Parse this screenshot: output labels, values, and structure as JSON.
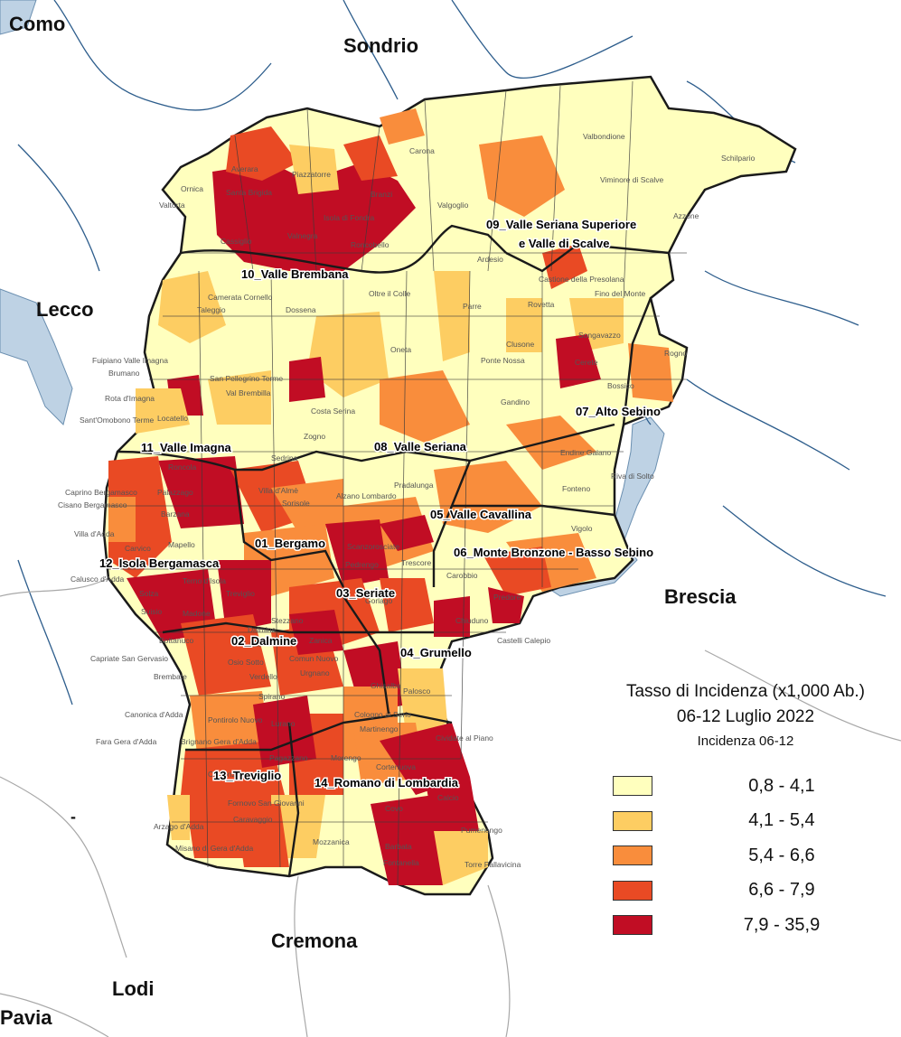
{
  "neighbors": [
    "Como",
    "Sondrio",
    "Lecco",
    "Brescia",
    "Cremona",
    "Lodi",
    "Pavia"
  ],
  "unnamed_region_mark": "-",
  "districts": [
    "01_Bergamo",
    "02_Dalmine",
    "03_Seriate",
    "04_Grumello",
    "05_Valle Cavallina",
    "06_Monte Bronzone - Basso Sebino",
    "07_Alto Sebino",
    "08_Valle Seriana",
    "09_Valle Seriana Superiore",
    "e Valle di Scalve",
    "10_Valle Brembana",
    "11_Valle Imagna",
    "12_Isola Bergamasca",
    "13_Treviglio",
    "14_Romano di Lombardia"
  ],
  "municipalities": [
    "Carona",
    "Valbondione",
    "Schilpario",
    "Piazzatorre",
    "Branzi",
    "Valtorta",
    "Averara",
    "Santa Brigida",
    "Ornica",
    "Isola di Fondra",
    "Cassiglio",
    "Valnegra",
    "Roncobello",
    "Valgoglio",
    "Viminore di Scalve",
    "Azzone",
    "Ardesio",
    "Castione della Presolana",
    "Fino del Monte",
    "Camerata Cornello",
    "Taleggio",
    "Dossena",
    "Oltre il Colle",
    "Parre",
    "Clusone",
    "Oneta",
    "Ponte Nossa",
    "Rovetta",
    "Songavazzo",
    "Rogno",
    "Cerete",
    "Fuipiano Valle Imagna",
    "Brumano",
    "Rota d'Imagna",
    "San Pellegrino Terme",
    "Val Brembilla",
    "Sant'Omobono Terme",
    "Costa Serina",
    "Zogno",
    "Gandino",
    "Bossico",
    "Locatello",
    "Sedrina",
    "Roncola",
    "Caprino Bergamasco",
    "Cisano Bergamasco",
    "Palazzago",
    "Villa d'Adda",
    "Barzana",
    "Villa d'Almè",
    "Sorisole",
    "Alzano Lombardo",
    "Pradalunga",
    "Endine Gaiano",
    "Fonteno",
    "Riva di Solto",
    "Vigolo",
    "Carvico",
    "Mapello",
    "Scanzorosciate",
    "Calusco d'Adda",
    "Solza",
    "Terno d'Isola",
    "Treviglio",
    "Suisio",
    "Madone",
    "Pedrengo",
    "Carobbio",
    "Predore",
    "Trescore",
    "Bottanuco",
    "Capriate San Gervasio",
    "Brembate",
    "Osio Sotto",
    "Zanica",
    "Comun Nuovo",
    "Urgnano",
    "Gorlago",
    "Chiuduno",
    "Castelli Calepio",
    "Verdello",
    "Ghisalba",
    "Palosco",
    "Canonica d'Adda",
    "Pontirolo Nuovo",
    "Cologno al Serio",
    "Martinengo",
    "Fara Gera d'Adda",
    "Brignano Gera d'Adda",
    "Caravaggio",
    "Cividate al Piano",
    "Morengo",
    "Fornovo San Giovanni",
    "Calcio",
    "Arzago d'Adda",
    "Pumenengo",
    "Misano di Gera d'Adda",
    "Barbata",
    "Fontanella",
    "Torre Pallavicina",
    "Covo",
    "Cortenuova",
    "Mozzanica",
    "Pagazzano",
    "Lurano",
    "Calvenzano",
    "Spirano",
    "Dalmine",
    "Stezzano",
    "Lallio"
  ],
  "legend": {
    "title_line1": "Tasso di Incidenza (x1,000 Ab.)",
    "title_line2": "06-12 Luglio 2022",
    "subtitle": "Incidenza 06-12",
    "classes": [
      {
        "label": "0,8 - 4,1",
        "color": "#ffffbe"
      },
      {
        "label": "4,1 - 5,4",
        "color": "#fdcd62"
      },
      {
        "label": "5,4 - 6,6",
        "color": "#f98d3c"
      },
      {
        "label": "6,6 - 7,9",
        "color": "#e94a24"
      },
      {
        "label": "7,9 - 35,9",
        "color": "#c10d24"
      }
    ]
  },
  "colors": {
    "water": "#bed2e4",
    "river": "#2d5d8c",
    "boundary": "#1a1a1a",
    "outside_border": "#b0b0b0"
  }
}
